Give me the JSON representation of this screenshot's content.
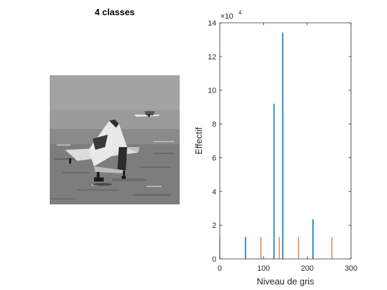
{
  "figure": {
    "left_panel": {
      "title": "4 classes",
      "image_name": "quantized-airplane-image"
    }
  },
  "chart_data": {
    "type": "bar",
    "xlabel": "Niveau de gris",
    "ylabel": "Effectif",
    "exponent_label": "×10",
    "exponent_power": "4",
    "xlim": [
      0,
      300
    ],
    "ylim": [
      0,
      14
    ],
    "y_scale_factor": 10000,
    "grid": false,
    "xticks": [
      "0",
      "100",
      "200",
      "300"
    ],
    "yticks": [
      "0",
      "2",
      "4",
      "6",
      "8",
      "10",
      "12",
      "14"
    ],
    "series": [
      {
        "color": "#0072BD",
        "x": [
          59,
          124,
          144,
          213
        ],
        "y": [
          1.3,
          9.2,
          13.4,
          2.35
        ]
      },
      {
        "color": "#D95319",
        "x": [
          0,
          94,
          136,
          180,
          256
        ],
        "y": [
          1.3,
          1.3,
          1.3,
          1.3,
          1.3
        ]
      }
    ]
  }
}
